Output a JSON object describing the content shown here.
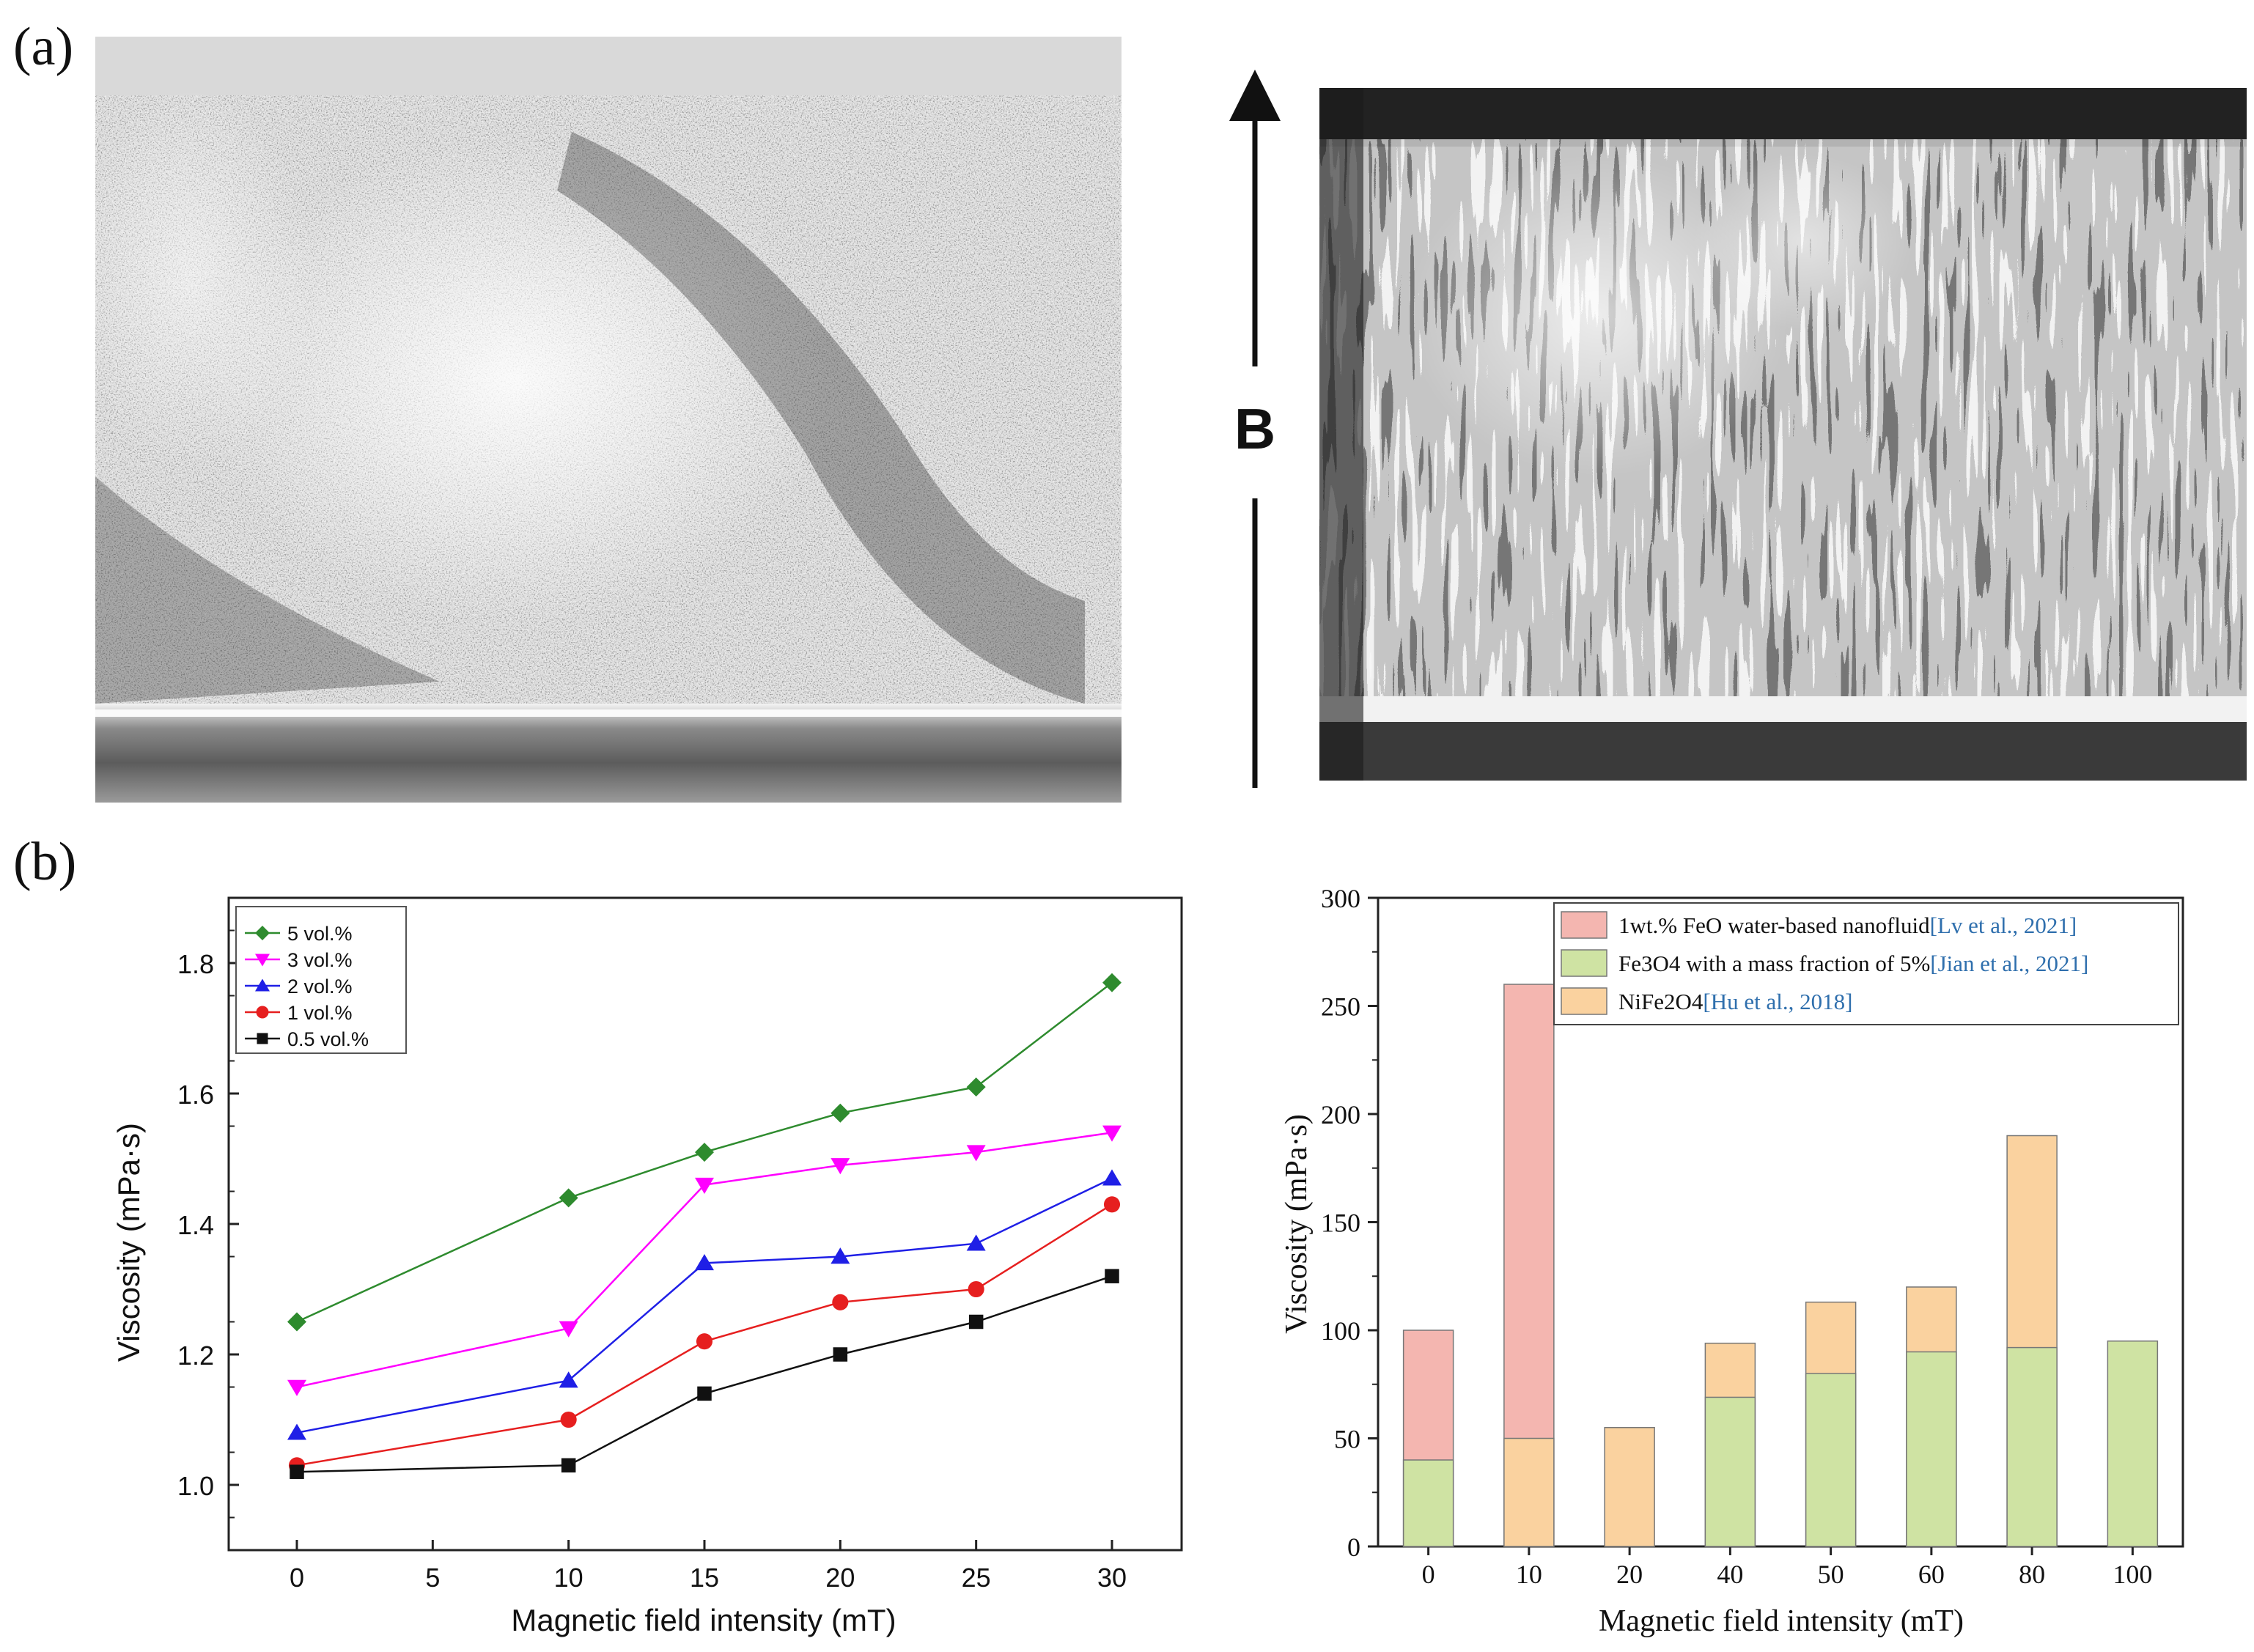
{
  "panel_labels": {
    "a": "(a)",
    "b": "(b)"
  },
  "photo_right": {
    "field_label": "B"
  },
  "chart_data": [
    {
      "type": "line",
      "x": [
        0,
        10,
        15,
        20,
        25,
        30
      ],
      "xticks": [
        "0",
        "5",
        "10",
        "15",
        "20",
        "25",
        "30"
      ],
      "series": [
        {
          "name": "5 vol.%",
          "values": [
            1.25,
            1.44,
            1.51,
            1.57,
            1.61,
            1.77
          ],
          "color": "#2e8b2e",
          "marker": "diamond"
        },
        {
          "name": "3 vol.%",
          "values": [
            1.15,
            1.24,
            1.46,
            1.49,
            1.51,
            1.54
          ],
          "color": "#ff00ff",
          "marker": "triangle-down"
        },
        {
          "name": "2 vol.%",
          "values": [
            1.08,
            1.16,
            1.34,
            1.35,
            1.37,
            1.47
          ],
          "color": "#1f1fe6",
          "marker": "triangle-up"
        },
        {
          "name": "1 vol.%",
          "values": [
            1.03,
            1.1,
            1.22,
            1.28,
            1.3,
            1.43
          ],
          "color": "#e61f1f",
          "marker": "circle"
        },
        {
          "name": "0.5 vol.%",
          "values": [
            1.02,
            1.03,
            1.14,
            1.2,
            1.25,
            1.32
          ],
          "color": "#111111",
          "marker": "square"
        }
      ],
      "yticks": [
        "1.0",
        "1.2",
        "1.4",
        "1.6",
        "1.8"
      ],
      "ylim": [
        0.9,
        1.9
      ],
      "xlabel": "Magnetic field intensity (mT)",
      "ylabel": "Viscosity (mPa·s)",
      "legend": "top-left"
    },
    {
      "type": "bar",
      "categories": [
        "0",
        "10",
        "20",
        "40",
        "50",
        "60",
        "80",
        "100"
      ],
      "series": [
        {
          "name": "1wt.% FeO water-based nanofluid",
          "ref": "[Lv et al., 2021]",
          "color": "#f4b6b0",
          "values": [
            100,
            260,
            null,
            null,
            null,
            null,
            null,
            null
          ]
        },
        {
          "name": "Fe3O4 with a mass fraction of 5%",
          "ref": "[Jian et al., 2021]",
          "color": "#cfe3a3",
          "values": [
            40,
            null,
            null,
            69,
            80,
            90,
            92,
            95
          ]
        },
        {
          "name": "NiFe2O4",
          "ref": "[Hu et al., 2018]",
          "color": "#fad29f",
          "values": [
            null,
            50,
            55,
            94,
            113,
            120,
            190,
            null
          ]
        }
      ],
      "yticks": [
        "0",
        "50",
        "100",
        "150",
        "200",
        "250",
        "300"
      ],
      "ylim": [
        0,
        300
      ],
      "xlabel": "Magnetic field intensity (mT)",
      "ylabel": "Viscosity (mPa·s)",
      "legend": "top"
    }
  ]
}
